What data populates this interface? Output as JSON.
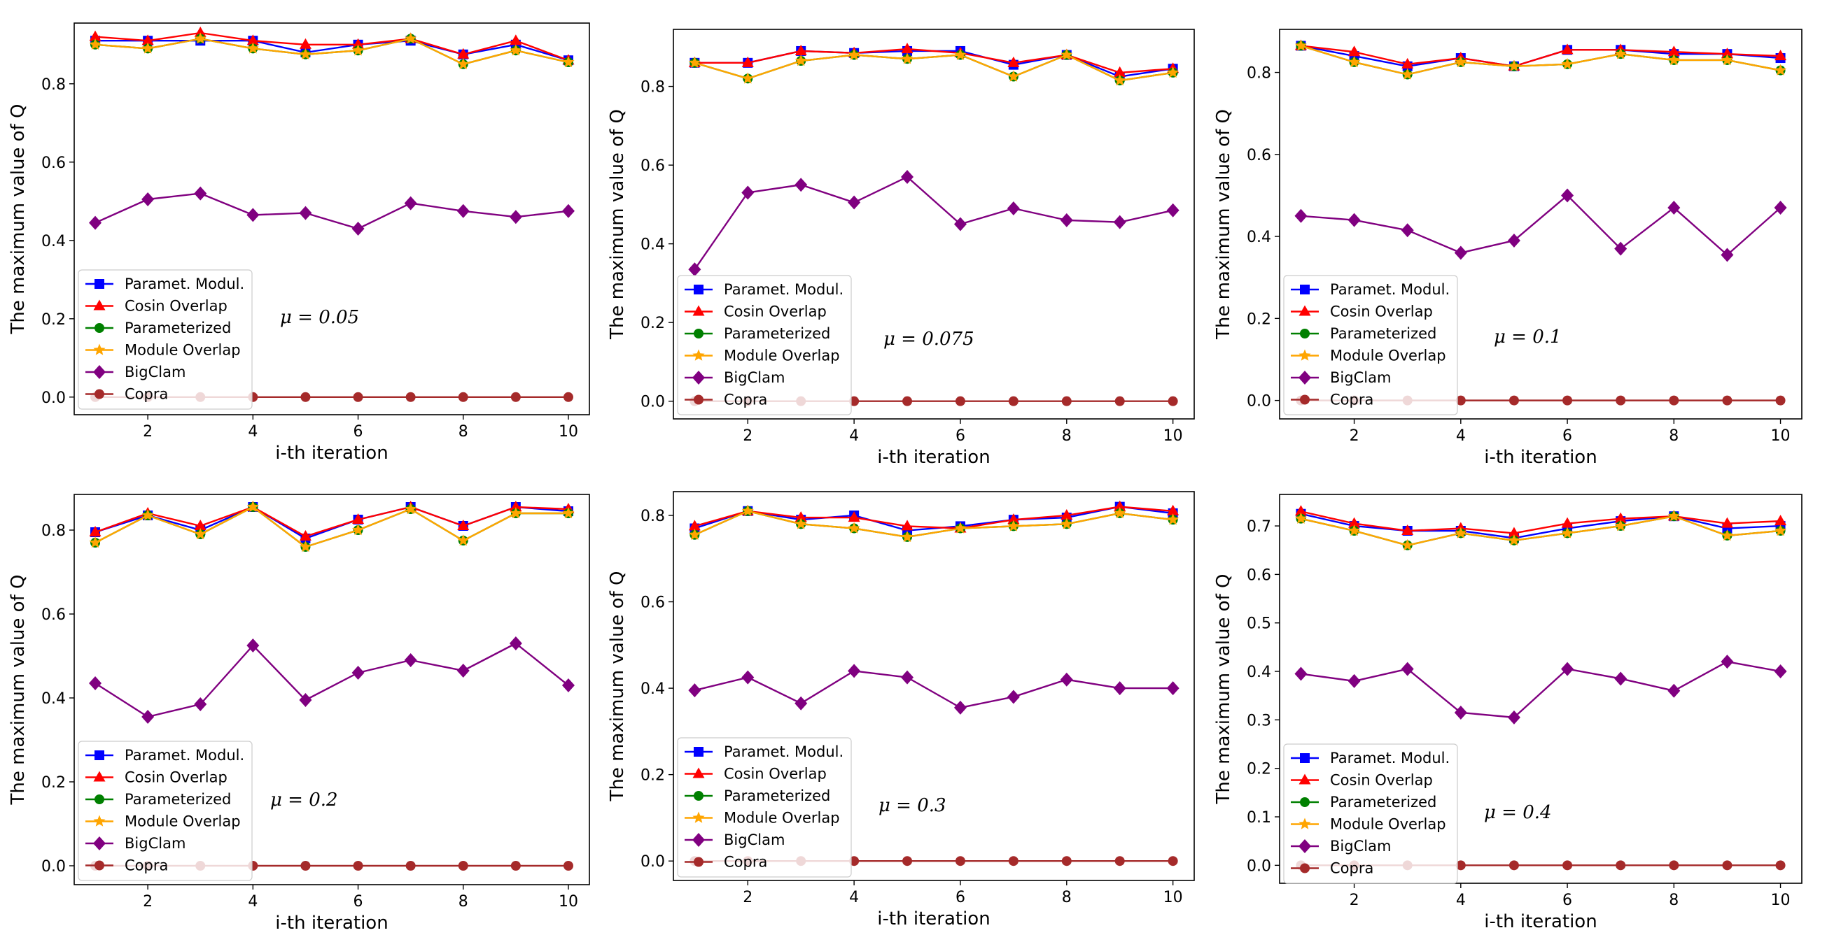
{
  "figure": {
    "legend_order": [
      "Paramet. Modul.",
      "Cosin Overlap",
      "Parameterized",
      "Module Overlap",
      "BigClam",
      "Copra"
    ]
  },
  "series_styles": {
    "Paramet. Modul.": {
      "color": "#0000ff",
      "marker": "square"
    },
    "Cosin Overlap": {
      "color": "#ff0000",
      "marker": "triangle"
    },
    "Parameterized": {
      "color": "#008000",
      "marker": "circle"
    },
    "Module Overlap": {
      "color": "#ffa500",
      "marker": "star"
    },
    "BigClam": {
      "color": "#800080",
      "marker": "diamond"
    },
    "Copra": {
      "color": "#a52a2a",
      "marker": "circle"
    }
  },
  "chart_data": [
    {
      "type": "line",
      "xlabel": "i-th iteration",
      "ylabel": "The maximum value of Q",
      "annotation": "μ = 0.05",
      "x": [
        1,
        2,
        3,
        4,
        5,
        6,
        7,
        8,
        9,
        10
      ],
      "xlim": [
        0.6,
        10.4
      ],
      "ylim": [
        -0.045,
        0.955
      ],
      "xticks": [
        2,
        4,
        6,
        8,
        10
      ],
      "yticks": [
        0.0,
        0.2,
        0.4,
        0.6,
        0.8
      ],
      "series": [
        {
          "name": "Paramet. Modul.",
          "values": [
            0.91,
            0.91,
            0.91,
            0.91,
            0.88,
            0.9,
            0.91,
            0.875,
            0.9,
            0.86
          ]
        },
        {
          "name": "Cosin Overlap",
          "values": [
            0.92,
            0.91,
            0.93,
            0.91,
            0.9,
            0.9,
            0.915,
            0.875,
            0.91,
            0.86
          ]
        },
        {
          "name": "Parameterized",
          "values": [
            0.9,
            0.89,
            0.915,
            0.89,
            0.875,
            0.885,
            0.915,
            0.85,
            0.885,
            0.855
          ]
        },
        {
          "name": "Module Overlap",
          "values": [
            0.9,
            0.89,
            0.915,
            0.89,
            0.875,
            0.885,
            0.915,
            0.85,
            0.885,
            0.855
          ]
        },
        {
          "name": "BigClam",
          "values": [
            0.445,
            0.505,
            0.52,
            0.465,
            0.47,
            0.43,
            0.495,
            0.475,
            0.46,
            0.475
          ]
        },
        {
          "name": "Copra",
          "values": [
            0,
            0,
            0,
            0,
            0,
            0,
            0,
            0,
            0,
            0
          ]
        }
      ]
    },
    {
      "type": "line",
      "xlabel": "i-th iteration",
      "ylabel": "The maximum value of Q",
      "annotation": "μ = 0.075",
      "x": [
        1,
        2,
        3,
        4,
        5,
        6,
        7,
        8,
        9,
        10
      ],
      "xlim": [
        0.6,
        10.4
      ],
      "ylim": [
        -0.045,
        0.945
      ],
      "xticks": [
        2,
        4,
        6,
        8,
        10
      ],
      "yticks": [
        0.0,
        0.2,
        0.4,
        0.6,
        0.8
      ],
      "series": [
        {
          "name": "Paramet. Modul.",
          "values": [
            0.86,
            0.86,
            0.89,
            0.885,
            0.89,
            0.89,
            0.855,
            0.88,
            0.825,
            0.845
          ]
        },
        {
          "name": "Cosin Overlap",
          "values": [
            0.86,
            0.86,
            0.89,
            0.885,
            0.895,
            0.885,
            0.86,
            0.88,
            0.835,
            0.845
          ]
        },
        {
          "name": "Parameterized",
          "values": [
            0.86,
            0.82,
            0.865,
            0.88,
            0.87,
            0.88,
            0.825,
            0.88,
            0.815,
            0.835
          ]
        },
        {
          "name": "Module Overlap",
          "values": [
            0.86,
            0.82,
            0.865,
            0.88,
            0.87,
            0.88,
            0.825,
            0.88,
            0.815,
            0.835
          ]
        },
        {
          "name": "BigClam",
          "values": [
            0.335,
            0.53,
            0.55,
            0.505,
            0.57,
            0.45,
            0.49,
            0.46,
            0.455,
            0.485
          ]
        },
        {
          "name": "Copra",
          "values": [
            0,
            0,
            0,
            0,
            0,
            0,
            0,
            0,
            0,
            0
          ]
        }
      ]
    },
    {
      "type": "line",
      "xlabel": "i-th iteration",
      "ylabel": "The maximum value of Q",
      "annotation": "μ = 0.1",
      "x": [
        1,
        2,
        3,
        4,
        5,
        6,
        7,
        8,
        9,
        10
      ],
      "xlim": [
        0.6,
        10.4
      ],
      "ylim": [
        -0.045,
        0.905
      ],
      "xticks": [
        2,
        4,
        6,
        8,
        10
      ],
      "yticks": [
        0.0,
        0.2,
        0.4,
        0.6,
        0.8
      ],
      "series": [
        {
          "name": "Paramet. Modul.",
          "values": [
            0.865,
            0.84,
            0.815,
            0.835,
            0.815,
            0.855,
            0.855,
            0.845,
            0.845,
            0.835
          ]
        },
        {
          "name": "Cosin Overlap",
          "values": [
            0.865,
            0.85,
            0.82,
            0.835,
            0.815,
            0.855,
            0.855,
            0.85,
            0.845,
            0.84
          ]
        },
        {
          "name": "Parameterized",
          "values": [
            0.865,
            0.825,
            0.795,
            0.825,
            0.815,
            0.82,
            0.845,
            0.83,
            0.83,
            0.805
          ]
        },
        {
          "name": "Module Overlap",
          "values": [
            0.865,
            0.825,
            0.795,
            0.825,
            0.815,
            0.82,
            0.845,
            0.83,
            0.83,
            0.805
          ]
        },
        {
          "name": "BigClam",
          "values": [
            0.45,
            0.44,
            0.415,
            0.36,
            0.39,
            0.5,
            0.37,
            0.47,
            0.355,
            0.47
          ]
        },
        {
          "name": "Copra",
          "values": [
            0,
            0,
            0,
            0,
            0,
            0,
            0,
            0,
            0,
            0
          ]
        }
      ]
    },
    {
      "type": "line",
      "xlabel": "i-th iteration",
      "ylabel": "The maximum value of Q",
      "annotation": "μ = 0.2",
      "x": [
        1,
        2,
        3,
        4,
        5,
        6,
        7,
        8,
        9,
        10
      ],
      "xlim": [
        0.6,
        10.4
      ],
      "ylim": [
        -0.045,
        0.885
      ],
      "xticks": [
        2,
        4,
        6,
        8,
        10
      ],
      "yticks": [
        0.0,
        0.2,
        0.4,
        0.6,
        0.8
      ],
      "series": [
        {
          "name": "Paramet. Modul.",
          "values": [
            0.795,
            0.835,
            0.8,
            0.855,
            0.78,
            0.825,
            0.855,
            0.81,
            0.855,
            0.845
          ]
        },
        {
          "name": "Cosin Overlap",
          "values": [
            0.795,
            0.84,
            0.81,
            0.855,
            0.785,
            0.825,
            0.855,
            0.81,
            0.855,
            0.85
          ]
        },
        {
          "name": "Parameterized",
          "values": [
            0.77,
            0.835,
            0.79,
            0.855,
            0.76,
            0.8,
            0.85,
            0.775,
            0.84,
            0.84
          ]
        },
        {
          "name": "Module Overlap",
          "values": [
            0.77,
            0.835,
            0.79,
            0.855,
            0.76,
            0.8,
            0.85,
            0.775,
            0.84,
            0.84
          ]
        },
        {
          "name": "BigClam",
          "values": [
            0.435,
            0.355,
            0.385,
            0.525,
            0.395,
            0.46,
            0.49,
            0.465,
            0.53,
            0.43
          ]
        },
        {
          "name": "Copra",
          "values": [
            0,
            0,
            0,
            0,
            0,
            0,
            0,
            0,
            0,
            0
          ]
        }
      ]
    },
    {
      "type": "line",
      "xlabel": "i-th iteration",
      "ylabel": "The maximum value of Q",
      "annotation": "μ = 0.3",
      "x": [
        1,
        2,
        3,
        4,
        5,
        6,
        7,
        8,
        9,
        10
      ],
      "xlim": [
        0.6,
        10.4
      ],
      "ylim": [
        -0.045,
        0.855
      ],
      "xticks": [
        2,
        4,
        6,
        8,
        10
      ],
      "yticks": [
        0.0,
        0.2,
        0.4,
        0.6,
        0.8
      ],
      "series": [
        {
          "name": "Paramet. Modul.",
          "values": [
            0.77,
            0.81,
            0.79,
            0.8,
            0.765,
            0.775,
            0.79,
            0.795,
            0.82,
            0.805
          ]
        },
        {
          "name": "Cosin Overlap",
          "values": [
            0.775,
            0.81,
            0.795,
            0.795,
            0.775,
            0.77,
            0.79,
            0.8,
            0.82,
            0.81
          ]
        },
        {
          "name": "Parameterized",
          "values": [
            0.755,
            0.81,
            0.78,
            0.77,
            0.75,
            0.77,
            0.775,
            0.78,
            0.805,
            0.79
          ]
        },
        {
          "name": "Module Overlap",
          "values": [
            0.755,
            0.81,
            0.78,
            0.77,
            0.75,
            0.77,
            0.775,
            0.78,
            0.805,
            0.79
          ]
        },
        {
          "name": "BigClam",
          "values": [
            0.395,
            0.425,
            0.365,
            0.44,
            0.425,
            0.355,
            0.38,
            0.42,
            0.4,
            0.4
          ]
        },
        {
          "name": "Copra",
          "values": [
            0,
            0,
            0,
            0,
            0,
            0,
            0,
            0,
            0,
            0
          ]
        }
      ]
    },
    {
      "type": "line",
      "xlabel": "i-th iteration",
      "ylabel": "The maximum value of Q",
      "annotation": "μ = 0.4",
      "x": [
        1,
        2,
        3,
        4,
        5,
        6,
        7,
        8,
        9,
        10
      ],
      "xlim": [
        0.6,
        10.4
      ],
      "ylim": [
        -0.037,
        0.765
      ],
      "xticks": [
        2,
        4,
        6,
        8,
        10
      ],
      "yticks": [
        0.0,
        0.1,
        0.2,
        0.3,
        0.4,
        0.5,
        0.6,
        0.7
      ],
      "series": [
        {
          "name": "Paramet. Modul.",
          "values": [
            0.725,
            0.7,
            0.69,
            0.69,
            0.675,
            0.695,
            0.71,
            0.72,
            0.695,
            0.7
          ]
        },
        {
          "name": "Cosin Overlap",
          "values": [
            0.73,
            0.705,
            0.69,
            0.695,
            0.685,
            0.705,
            0.715,
            0.72,
            0.705,
            0.71
          ]
        },
        {
          "name": "Parameterized",
          "values": [
            0.715,
            0.69,
            0.66,
            0.685,
            0.67,
            0.685,
            0.7,
            0.72,
            0.68,
            0.69
          ]
        },
        {
          "name": "Module Overlap",
          "values": [
            0.715,
            0.69,
            0.66,
            0.685,
            0.67,
            0.685,
            0.7,
            0.72,
            0.68,
            0.69
          ]
        },
        {
          "name": "BigClam",
          "values": [
            0.395,
            0.38,
            0.405,
            0.315,
            0.305,
            0.405,
            0.385,
            0.36,
            0.42,
            0.4
          ]
        },
        {
          "name": "Copra",
          "values": [
            0,
            0,
            0,
            0,
            0,
            0,
            0,
            0,
            0,
            0
          ]
        }
      ]
    }
  ]
}
